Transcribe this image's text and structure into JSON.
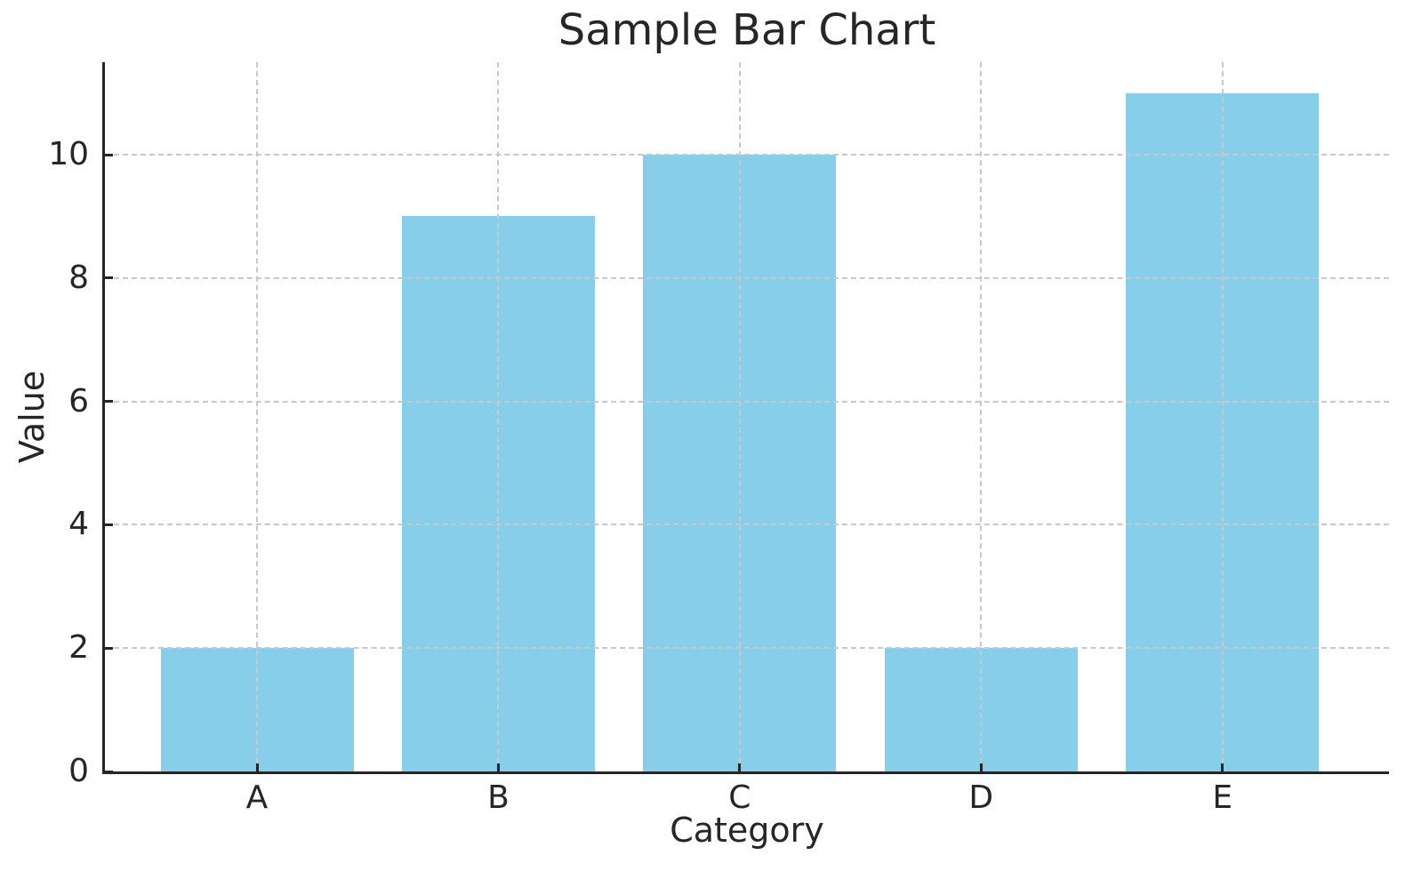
{
  "chart_data": {
    "type": "bar",
    "title": "Sample Bar Chart",
    "xlabel": "Category",
    "ylabel": "Value",
    "categories": [
      "A",
      "B",
      "C",
      "D",
      "E"
    ],
    "values": [
      2,
      9,
      10,
      2,
      11
    ],
    "yticks": [
      0,
      2,
      4,
      6,
      8,
      10
    ],
    "ylim": [
      0,
      11.5
    ],
    "grid": true,
    "grid_axes": "both",
    "grid_style": "dashed",
    "legend": "none",
    "colors": {
      "bar": "#87ceeb",
      "grid": "#c8c8c8",
      "axis": "#262626",
      "text": "#262626",
      "background": "#ffffff"
    }
  }
}
